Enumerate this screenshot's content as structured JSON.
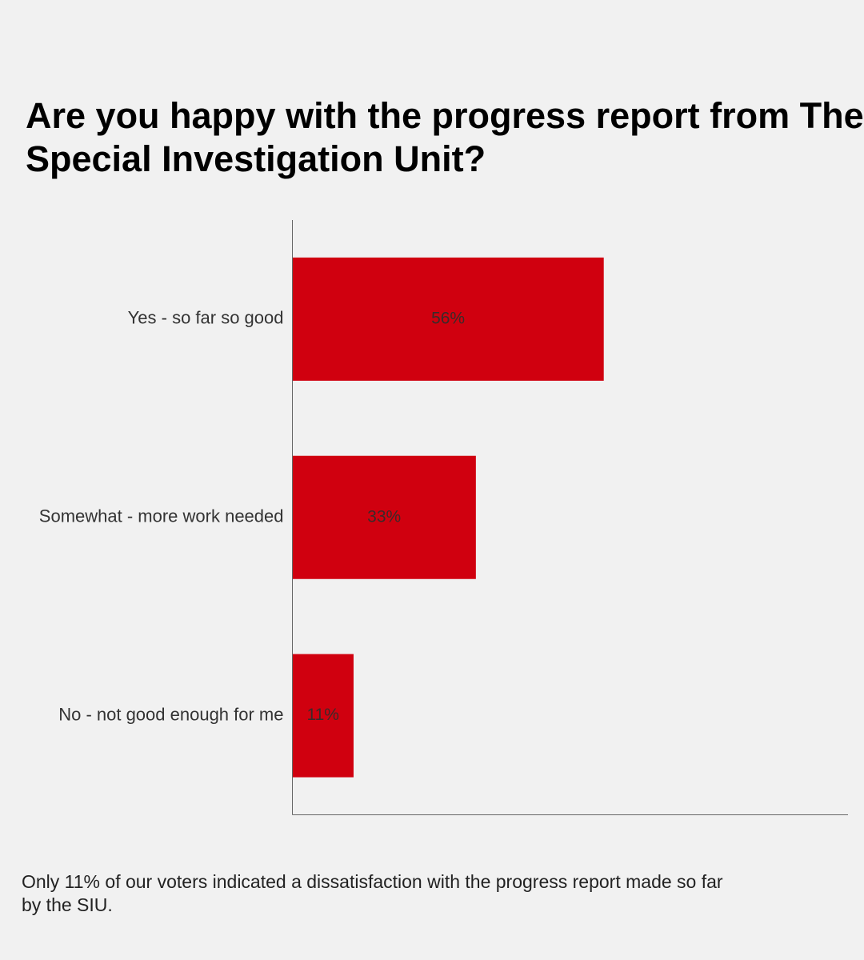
{
  "title_lines": [
    "Are you happy with the progress report from The",
    "Special Investigation Unit?"
  ],
  "footnote": "Only 11% of our voters indicated a dissatisfaction with the progress report made so far by the SIU.",
  "colors": {
    "bar": "#d0000f",
    "axis": "#666666",
    "category_label": "#333333",
    "value_label": "#3a2a2a",
    "background": "#f1f1f1"
  },
  "chart_data": {
    "type": "bar",
    "orientation": "horizontal",
    "categories": [
      "Yes - so far so good",
      "Somewhat - more work needed",
      "No - not good enough for me"
    ],
    "values": [
      56,
      33,
      11
    ],
    "value_labels": [
      "56%",
      "33%",
      "11%"
    ],
    "unit": "%",
    "xlim": [
      0,
      100
    ],
    "grid": false,
    "legend": "none"
  }
}
